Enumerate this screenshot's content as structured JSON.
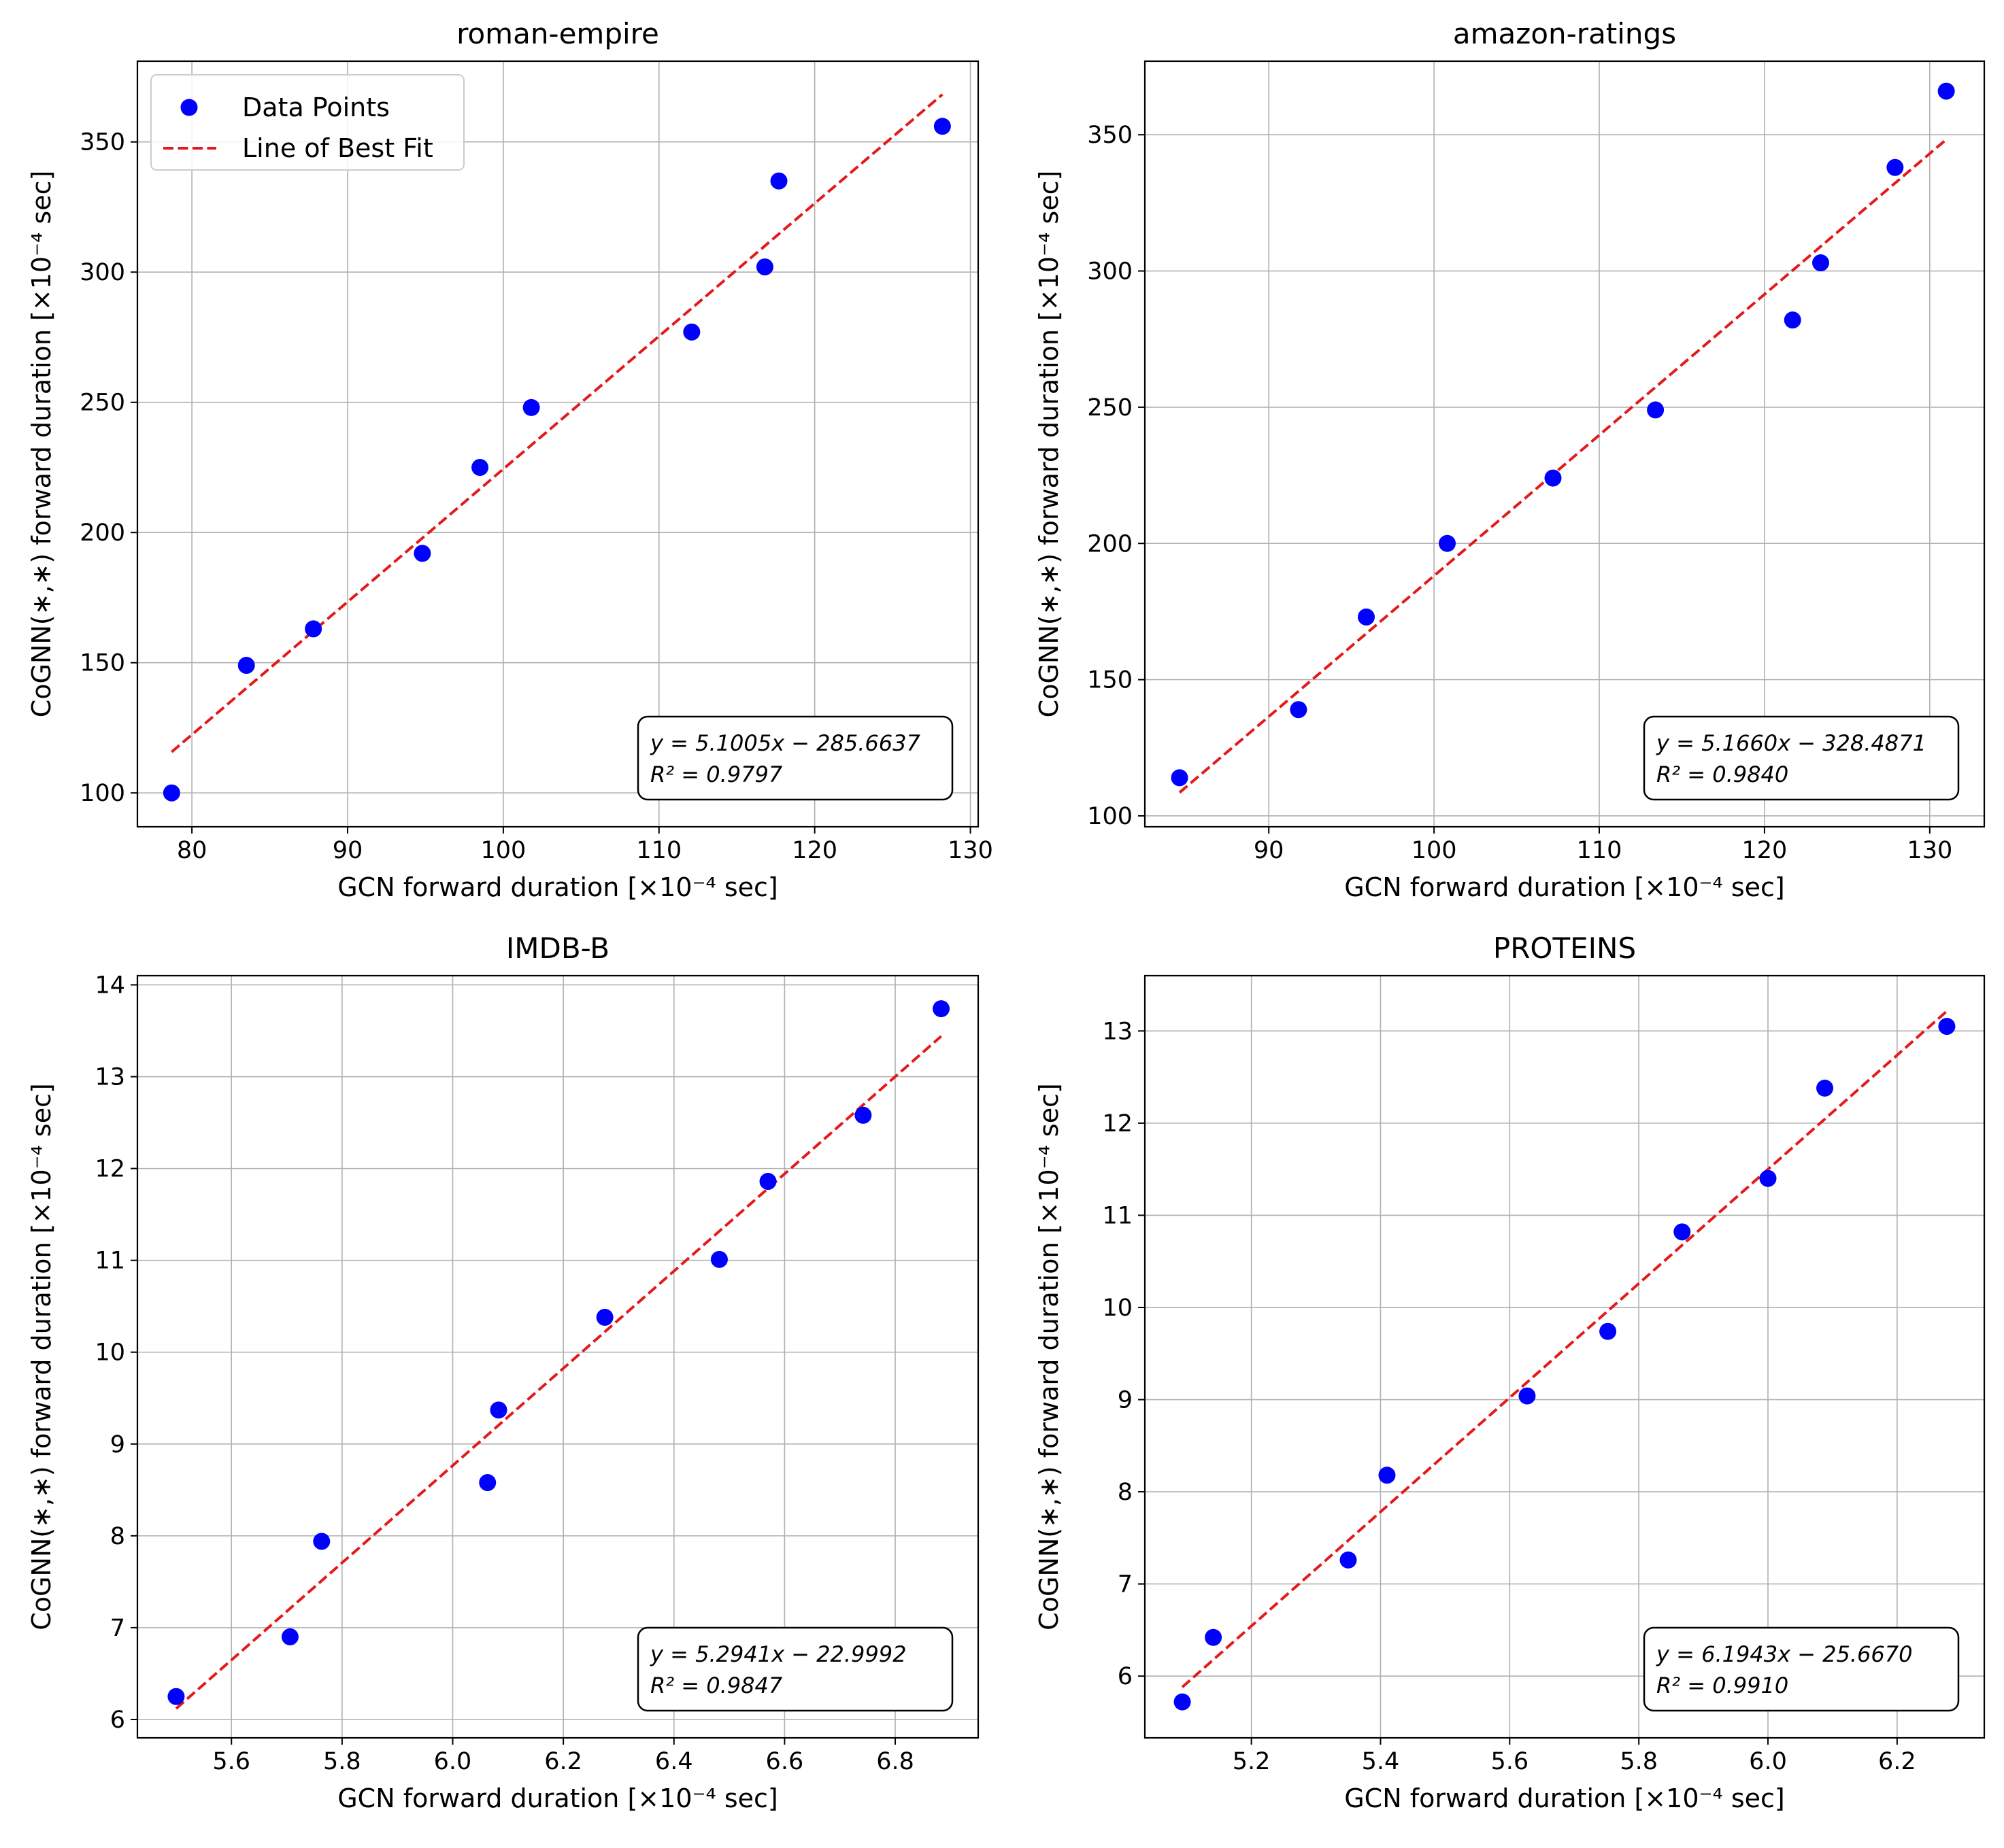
{
  "figure": {
    "x_label": "GCN forward duration [×10⁻⁴ sec]",
    "y_label": "CoGNN(∗,∗) forward duration [×10⁻⁴ sec]"
  },
  "colors": {
    "points": "#0000ff",
    "fit_line": "#e31a1c",
    "grid": "#b0b0b0",
    "axes": "#000000"
  },
  "legend": {
    "points_label": "Data Points",
    "line_label": "Line of Best Fit",
    "location": "upper-left of first panel"
  },
  "chart_data": [
    {
      "type": "scatter",
      "title": "roman-empire",
      "xlabel": "GCN forward duration [×10⁻⁴ sec]",
      "ylabel": "CoGNN(∗,∗) forward duration [×10⁻⁴ sec]",
      "xlim": [
        76.5,
        130.5
      ],
      "ylim": [
        87,
        381
      ],
      "xticks": [
        80,
        90,
        100,
        110,
        120,
        130
      ],
      "yticks": [
        100,
        150,
        200,
        250,
        300,
        350
      ],
      "xtick_labels": [
        "80",
        "90",
        "100",
        "110",
        "120",
        "130"
      ],
      "ytick_labels": [
        "100",
        "150",
        "200",
        "250",
        "300",
        "350"
      ],
      "points": {
        "x": [
          78.7,
          83.5,
          87.8,
          94.8,
          98.5,
          101.8,
          112.1,
          116.8,
          117.7,
          128.2
        ],
        "y": [
          100,
          149,
          163,
          192,
          225,
          248,
          277,
          302,
          335,
          356
        ]
      },
      "fit": {
        "slope": 5.1005,
        "intercept": -285.6637,
        "x_range": [
          78.7,
          128.2
        ]
      },
      "equation": "y = 5.1005x − 285.6637",
      "r2_label": "R² = 0.9797"
    },
    {
      "type": "scatter",
      "title": "amazon-ratings",
      "xlabel": "GCN forward duration [×10⁻⁴ sec]",
      "ylabel": "CoGNN(∗,∗) forward duration [×10⁻⁴ sec]",
      "xlim": [
        82.5,
        133.3
      ],
      "ylim": [
        96,
        377
      ],
      "xticks": [
        90,
        100,
        110,
        120,
        130
      ],
      "yticks": [
        100,
        150,
        200,
        250,
        300,
        350
      ],
      "xtick_labels": [
        "90",
        "100",
        "110",
        "120",
        "130"
      ],
      "ytick_labels": [
        "100",
        "150",
        "200",
        "250",
        "300",
        "350"
      ],
      "points": {
        "x": [
          84.6,
          91.8,
          95.9,
          100.8,
          107.2,
          113.4,
          121.7,
          123.4,
          127.9,
          131.0
        ],
        "y": [
          114,
          139,
          173,
          200,
          224,
          249,
          282,
          303,
          338,
          366
        ]
      },
      "fit": {
        "slope": 5.166,
        "intercept": -328.4871,
        "x_range": [
          84.6,
          131.0
        ]
      },
      "equation": "y = 5.1660x − 328.4871",
      "r2_label": "R² = 0.9840"
    },
    {
      "type": "scatter",
      "title": "IMDB-B",
      "xlabel": "GCN forward duration [×10⁻⁴ sec]",
      "ylabel": "CoGNN(∗,∗) forward duration [×10⁻⁴ sec]",
      "xlim": [
        5.43,
        6.95
      ],
      "ylim": [
        5.8,
        14.1
      ],
      "xticks": [
        5.6,
        5.8,
        6.0,
        6.2,
        6.4,
        6.6,
        6.8
      ],
      "yticks": [
        6,
        7,
        8,
        9,
        10,
        11,
        12,
        13,
        14
      ],
      "xtick_labels": [
        "5.6",
        "5.8",
        "6.0",
        "6.2",
        "6.4",
        "6.6",
        "6.8"
      ],
      "ytick_labels": [
        "6",
        "7",
        "8",
        "9",
        "10",
        "11",
        "12",
        "13",
        "14"
      ],
      "points": {
        "x": [
          5.5,
          5.706,
          5.763,
          6.063,
          6.083,
          6.275,
          6.482,
          6.57,
          6.742,
          6.883
        ],
        "y": [
          6.25,
          6.9,
          7.94,
          8.58,
          9.37,
          10.38,
          11.01,
          11.86,
          12.58,
          13.74
        ]
      },
      "fit": {
        "slope": 5.2941,
        "intercept": -22.9992,
        "x_range": [
          5.5,
          6.883
        ]
      },
      "equation": "y = 5.2941x − 22.9992",
      "r2_label": "R² = 0.9847"
    },
    {
      "type": "scatter",
      "title": "PROTEINS",
      "xlabel": "GCN forward duration [×10⁻⁴ sec]",
      "ylabel": "CoGNN(∗,∗) forward duration [×10⁻⁴ sec]",
      "xlim": [
        5.035,
        6.335
      ],
      "ylim": [
        5.33,
        13.6
      ],
      "xticks": [
        5.2,
        5.4,
        5.6,
        5.8,
        6.0,
        6.2
      ],
      "yticks": [
        6,
        7,
        8,
        9,
        10,
        11,
        12,
        13
      ],
      "xtick_labels": [
        "5.2",
        "5.4",
        "5.6",
        "5.8",
        "6.0",
        "6.2"
      ],
      "ytick_labels": [
        "6",
        "7",
        "8",
        "9",
        "10",
        "11",
        "12",
        "13"
      ],
      "points": {
        "x": [
          5.093,
          5.141,
          5.35,
          5.41,
          5.627,
          5.752,
          5.867,
          6.0,
          6.088,
          6.277
        ],
        "y": [
          5.72,
          6.42,
          7.26,
          8.18,
          9.04,
          9.74,
          10.82,
          11.4,
          12.38,
          13.05
        ]
      },
      "fit": {
        "slope": 6.1943,
        "intercept": -25.667,
        "x_range": [
          5.093,
          6.277
        ]
      },
      "equation": "y = 6.1943x − 25.6670",
      "r2_label": "R² = 0.9910"
    }
  ]
}
